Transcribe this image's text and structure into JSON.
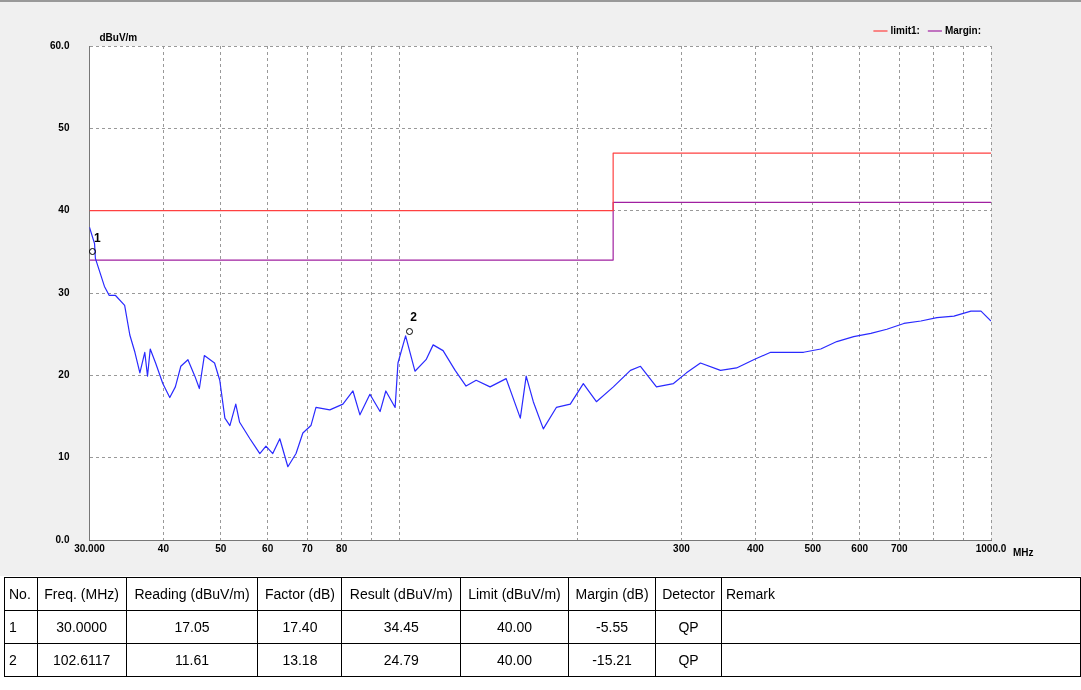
{
  "chart_data": {
    "type": "line",
    "ylabel": "dBuV/m",
    "xlabel": "MHz",
    "log": "x",
    "grid": true,
    "legend": "top right",
    "marker": "none",
    "line_style": "solid",
    "xlim": [
      30,
      1000
    ],
    "ylim": [
      0,
      60
    ],
    "xticks": [
      {
        "value": 30,
        "label": "30.000"
      },
      40,
      50,
      60,
      70,
      80,
      {
        "value": 90,
        "label": null
      },
      {
        "value": 100,
        "label": null
      },
      {
        "value": 200,
        "label": null
      },
      300,
      400,
      500,
      600,
      700,
      {
        "value": 800,
        "label": null
      },
      {
        "value": 900,
        "label": null
      },
      {
        "value": 1000,
        "label": "1000.0"
      }
    ],
    "yticks": [
      {
        "value": 0,
        "label": "0.0"
      },
      10,
      20,
      30,
      40,
      50,
      {
        "value": 60,
        "label": "60.0"
      }
    ],
    "series": [
      {
        "color": "#2a2aff",
        "x": [
          30,
          30.6,
          30.7,
          31.8,
          32.4,
          33.2,
          34.4,
          35.1,
          35.8,
          36.5,
          37.2,
          37.6,
          38.0,
          38.8,
          39.9,
          41.0,
          41.9,
          42.8,
          44.0,
          45.2,
          46.0,
          46.9,
          48.8,
          49.8,
          50.8,
          51.8,
          53.0,
          53.8,
          56.0,
          58.2,
          59.6,
          61.2,
          62.9,
          64.9,
          67.0,
          68.8,
          71.0,
          72.4,
          76.4,
          80.4,
          83.6,
          85.9,
          89.3,
          92.9,
          95.0,
          98.5,
          99.6,
          102.6,
          106.4,
          111.1,
          114.2,
          118.7,
          124.4,
          129.8,
          135.0,
          142.5,
          151.7,
          160.3,
          164.0,
          168.6,
          175.3,
          184.4,
          194.7,
          204.8,
          215.5,
          230.2,
          246.0,
          255.8,
          272.2,
          290.8,
          305.9,
          323.0,
          349.2,
          371.7,
          397.2,
          424.5,
          451.8,
          482.4,
          515.7,
          549.0,
          586.2,
          626.7,
          666.9,
          712.5,
          761.4,
          810.3,
          865.8,
          924.9,
          961.8,
          1000
        ],
        "values": [
          38.0,
          36.0,
          34.2,
          30.8,
          29.7,
          29.7,
          28.5,
          24.9,
          22.8,
          20.3,
          22.8,
          19.9,
          23.2,
          21.5,
          19.0,
          17.3,
          18.6,
          21.1,
          21.9,
          19.9,
          18.4,
          22.4,
          21.5,
          19.4,
          14.8,
          13.9,
          16.5,
          14.3,
          12.3,
          10.5,
          11.4,
          10.5,
          12.3,
          8.9,
          10.5,
          13.0,
          13.9,
          16.1,
          15.8,
          16.5,
          18.1,
          15.2,
          17.7,
          15.6,
          18.1,
          16.1,
          21.5,
          24.8,
          20.5,
          21.9,
          23.7,
          23.0,
          20.6,
          18.7,
          19.4,
          18.6,
          19.6,
          14.8,
          19.9,
          16.8,
          13.5,
          16.1,
          16.5,
          19.0,
          16.8,
          18.6,
          20.6,
          21.1,
          18.6,
          19.0,
          20.3,
          21.5,
          20.6,
          20.9,
          21.9,
          22.8,
          22.8,
          22.8,
          23.2,
          24.1,
          24.7,
          25.1,
          25.6,
          26.3,
          26.6,
          27.0,
          27.2,
          27.8,
          27.8,
          26.6
        ]
      },
      {
        "name": "limit1:",
        "color": "#ff4040",
        "x": [
          30,
          230,
          230,
          1000
        ],
        "values": [
          40,
          40,
          47,
          47
        ]
      },
      {
        "name": "Margin:",
        "color": "#a020a0",
        "x": [
          30,
          230,
          230,
          1000
        ],
        "values": [
          34,
          34,
          41,
          41
        ]
      }
    ],
    "annotations": [
      {
        "text": "1",
        "x": 30,
        "y": 34.45
      },
      {
        "text": "2",
        "x": 102.6117,
        "y": 24.79
      },
      "No.",
      "Freq. (MHz)",
      "Reading (dBuV/m)",
      "Factor (dB)",
      "Result (dBuV/m)",
      "Limit (dBuV/m)",
      "Margin (dB)",
      "Detector",
      "Remark",
      "1",
      "30.0000",
      "17.05",
      "17.40",
      "34.45",
      "40.00",
      "-5.55",
      "QP",
      "2",
      "102.6117",
      "11.61",
      "13.18",
      "24.79",
      "40.00",
      "-15.21",
      "QP"
    ]
  }
}
